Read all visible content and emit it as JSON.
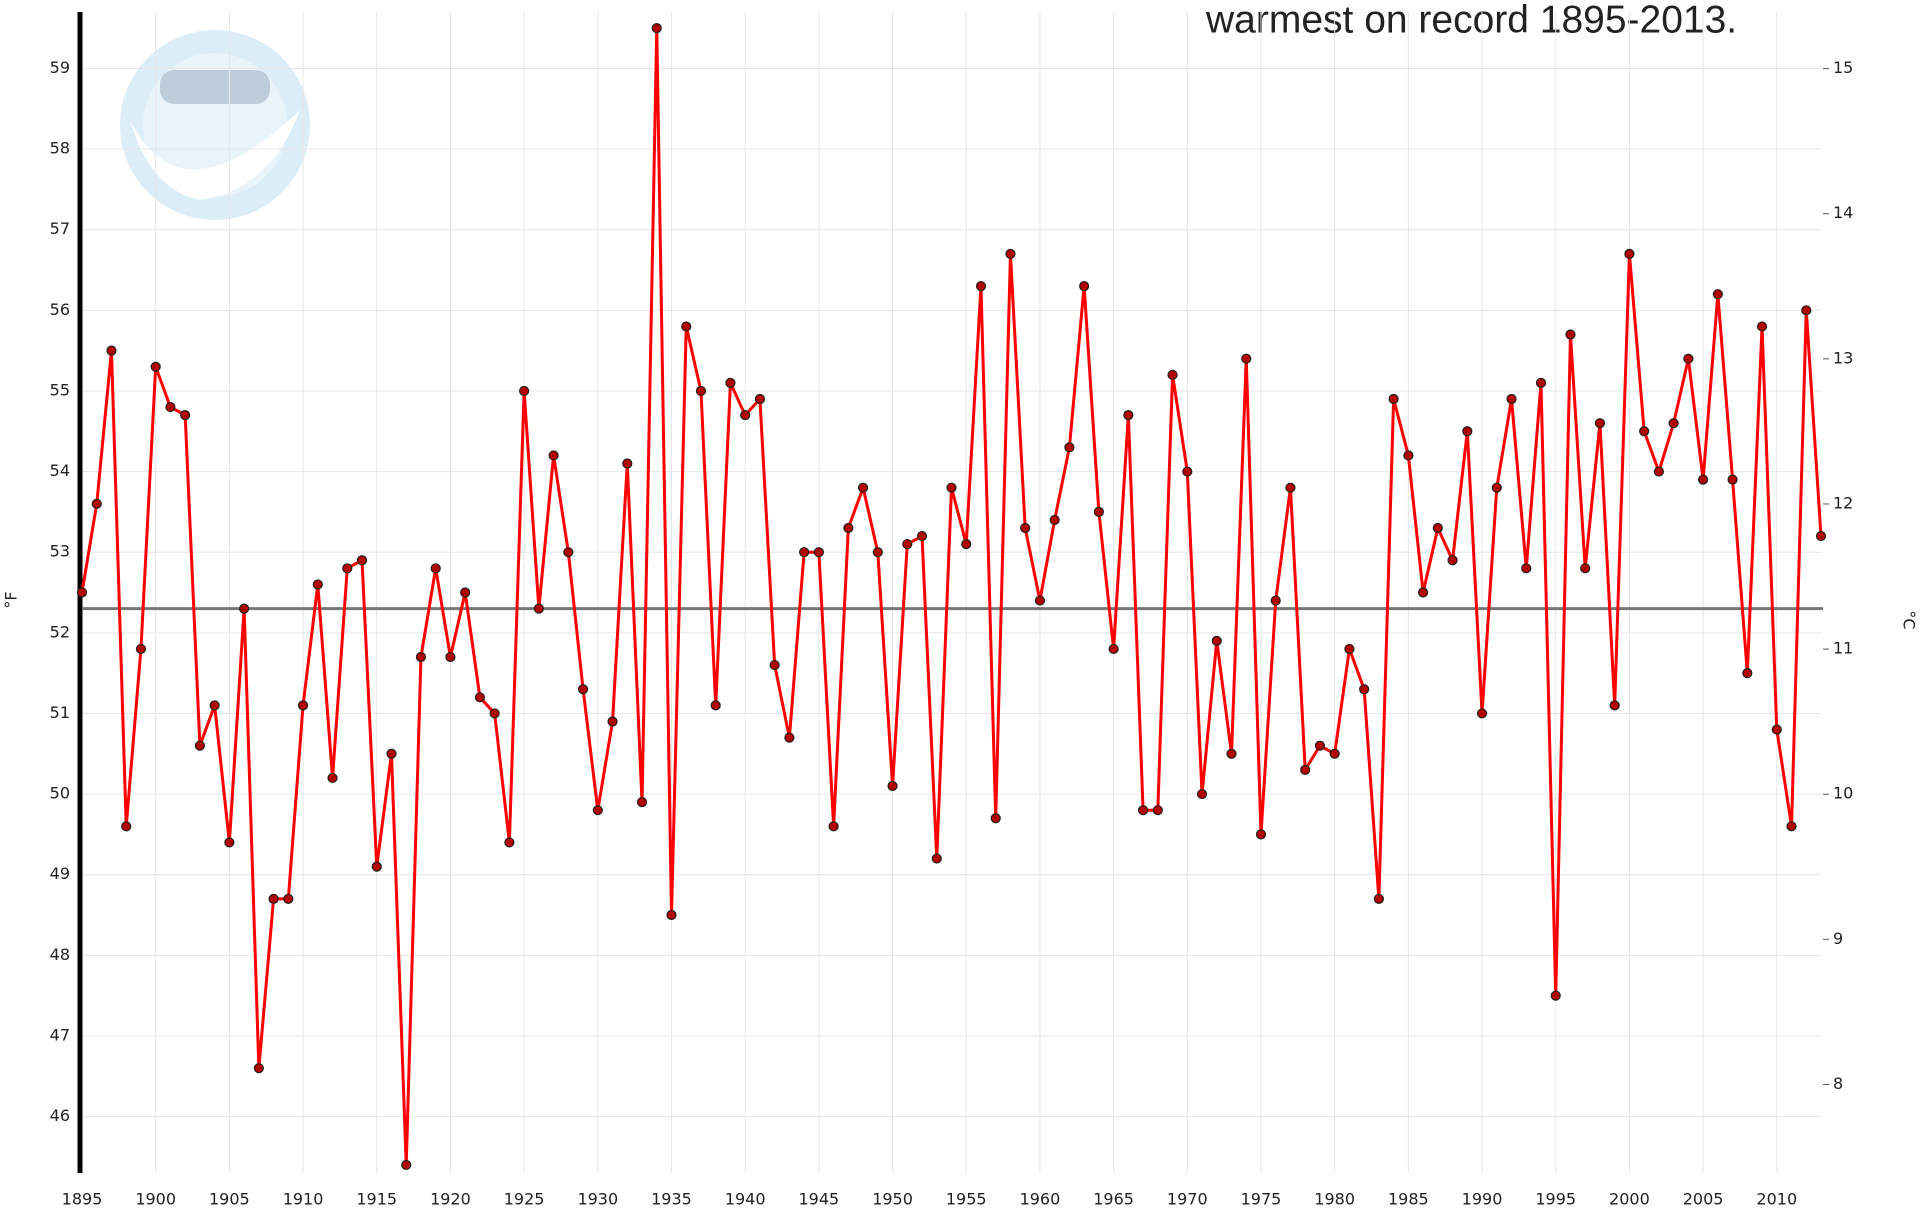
{
  "chart_data": {
    "type": "line",
    "title": "warmest on record 1895-2013.",
    "ylabel": "°F",
    "y2label": "°C",
    "x": [
      1895,
      1896,
      1897,
      1898,
      1899,
      1900,
      1901,
      1902,
      1903,
      1904,
      1905,
      1906,
      1907,
      1908,
      1909,
      1910,
      1911,
      1912,
      1913,
      1914,
      1915,
      1916,
      1917,
      1918,
      1919,
      1920,
      1921,
      1922,
      1923,
      1924,
      1925,
      1926,
      1927,
      1928,
      1929,
      1930,
      1931,
      1932,
      1933,
      1934,
      1935,
      1936,
      1937,
      1938,
      1939,
      1940,
      1941,
      1942,
      1943,
      1944,
      1945,
      1946,
      1947,
      1948,
      1949,
      1950,
      1951,
      1952,
      1953,
      1954,
      1955,
      1956,
      1957,
      1958,
      1959,
      1960,
      1961,
      1962,
      1963,
      1964,
      1965,
      1966,
      1967,
      1968,
      1969,
      1970,
      1971,
      1972,
      1973,
      1974,
      1975,
      1976,
      1977,
      1978,
      1979,
      1980,
      1981,
      1982,
      1983,
      1984,
      1985,
      1986,
      1987,
      1988,
      1989,
      1990,
      1991,
      1992,
      1993,
      1994,
      1995,
      1996,
      1997,
      1998,
      1999,
      2000,
      2001,
      2002,
      2003,
      2004,
      2005,
      2006,
      2007,
      2008,
      2009,
      2010,
      2011,
      2012,
      2013
    ],
    "series": [
      {
        "color": "#ff0000",
        "marker_color": "#b00000",
        "values": [
          52.5,
          53.6,
          55.5,
          49.6,
          51.8,
          55.3,
          54.8,
          54.7,
          50.6,
          51.1,
          49.4,
          52.3,
          46.6,
          48.7,
          48.7,
          51.1,
          52.6,
          50.2,
          52.8,
          52.9,
          49.1,
          50.5,
          45.4,
          51.7,
          52.8,
          51.7,
          52.5,
          51.2,
          51.0,
          49.4,
          55.0,
          52.3,
          54.2,
          53.0,
          51.3,
          49.8,
          50.9,
          54.1,
          49.9,
          59.5,
          48.5,
          55.8,
          55.0,
          51.1,
          55.1,
          54.7,
          54.9,
          51.6,
          50.7,
          53.0,
          53.0,
          49.6,
          53.3,
          53.8,
          53.0,
          50.1,
          53.1,
          53.2,
          49.2,
          53.8,
          53.1,
          56.3,
          49.7,
          56.7,
          53.3,
          52.4,
          53.4,
          54.3,
          56.3,
          53.5,
          51.8,
          54.7,
          49.8,
          49.8,
          55.2,
          54.0,
          50.0,
          51.9,
          50.5,
          55.4,
          49.5,
          52.4,
          53.8,
          50.3,
          50.6,
          50.5,
          51.8,
          51.3,
          48.7,
          54.9,
          54.2,
          52.5,
          53.3,
          52.9,
          54.5,
          51.0,
          53.8,
          54.9,
          52.8,
          55.1,
          47.5,
          55.7,
          52.8,
          54.6,
          51.1,
          56.7,
          54.5,
          54.0,
          54.6,
          55.4,
          53.9,
          56.2,
          53.9,
          51.5,
          55.8,
          50.8,
          49.6,
          56.0,
          53.2
        ]
      }
    ],
    "reference_line": 52.3,
    "reference_color": "#777777",
    "xlim": [
      1895,
      2013
    ],
    "xticks": [
      1895,
      1900,
      1905,
      1910,
      1915,
      1920,
      1925,
      1930,
      1935,
      1940,
      1945,
      1950,
      1955,
      1960,
      1965,
      1970,
      1975,
      1980,
      1985,
      1990,
      1995,
      2000,
      2005,
      2010
    ],
    "ylim": [
      45.3,
      59.7
    ],
    "yticks": [
      46,
      47,
      48,
      49,
      50,
      51,
      52,
      53,
      54,
      55,
      56,
      57,
      58,
      59
    ],
    "y2lim": [
      7.39,
      15.39
    ],
    "y2ticks": [
      8,
      9,
      10,
      11,
      12,
      13,
      14,
      15
    ],
    "grid": true
  }
}
